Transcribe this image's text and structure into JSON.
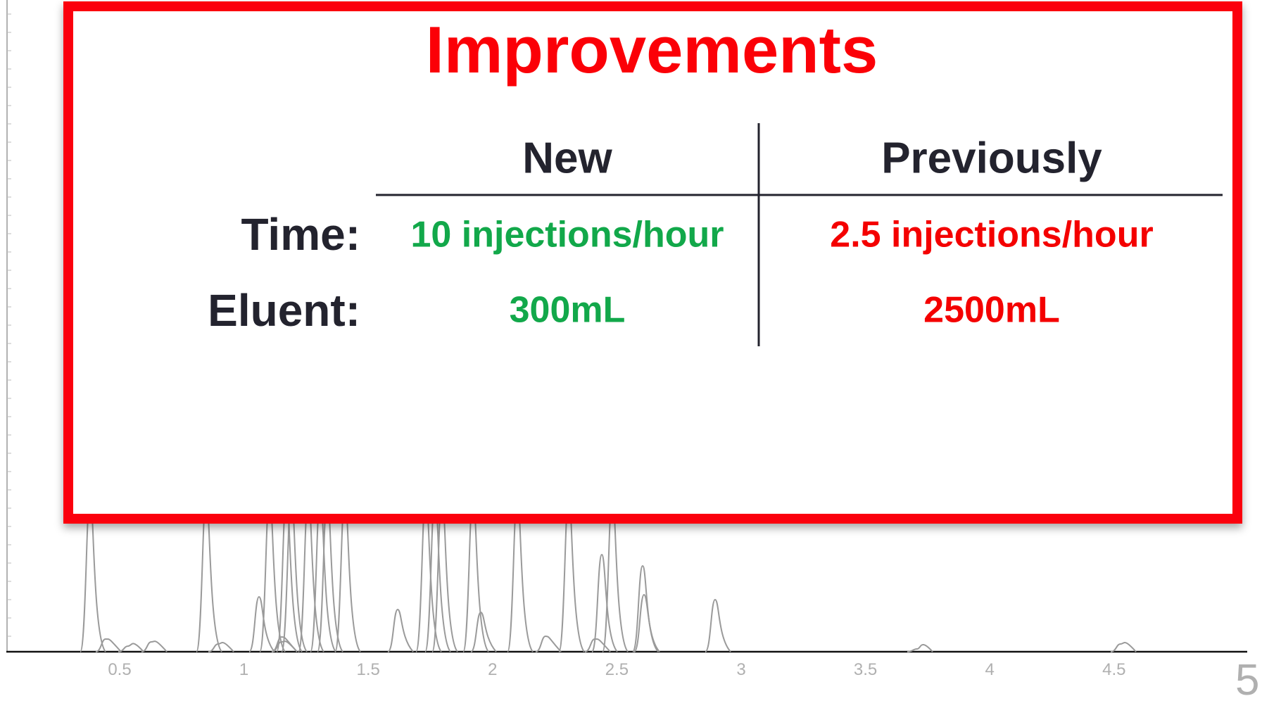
{
  "slide": {
    "title": "Improvements",
    "table": {
      "headers": [
        "New",
        "Previously"
      ],
      "rows": [
        {
          "label": "Time:",
          "new": "10 injections/hour",
          "previously": "2.5 injections/hour"
        },
        {
          "label": "Eluent:",
          "new": "300mL",
          "previously": "2500mL"
        }
      ]
    }
  },
  "background_axis": {
    "tick_labels": [
      "0.5",
      "1",
      "1.5",
      "2",
      "2.5",
      "3",
      "3.5",
      "4",
      "4.5"
    ],
    "end_label": "5"
  }
}
